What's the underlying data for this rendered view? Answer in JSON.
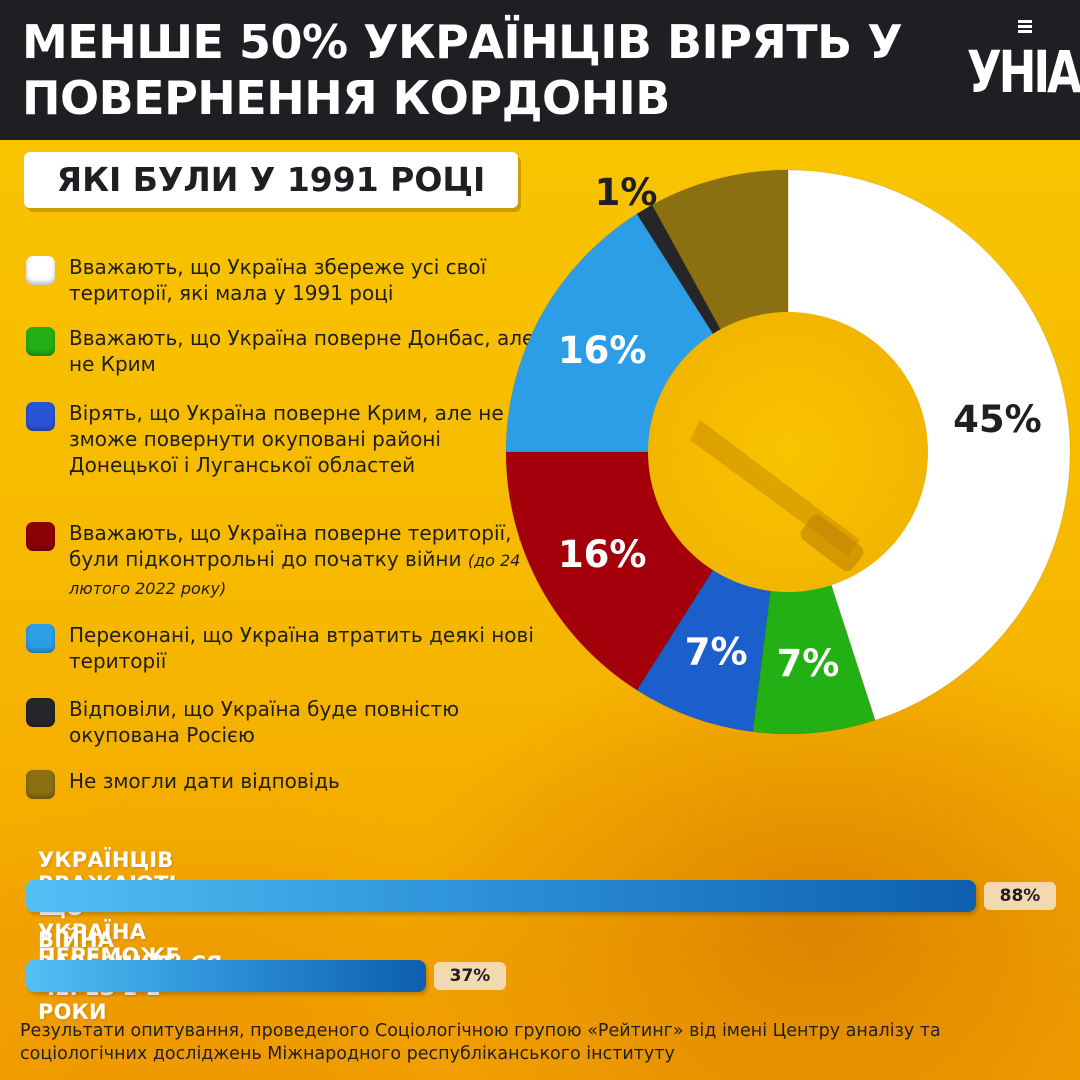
{
  "header": {
    "title": "МЕНШЕ 50% УКРАЇНЦІВ ВІРЯТЬ У ПОВЕРНЕННЯ КОРДОНІВ",
    "logo": "УНІАН"
  },
  "subtitle": "ЯКІ БУЛИ У 1991 РОЦІ",
  "legend": [
    {
      "text": "Вважають, що Україна збереже усі свої території, які мала у 1991 році",
      "note": "",
      "color": "#ffffff"
    },
    {
      "text": "Вважають, що Україна поверне Донбас, але не Крим",
      "note": "",
      "color": "#22b014"
    },
    {
      "text": "Вірять, що Україна поверне Крим, але не зможе повернути окуповані районі Донецької і Луганської областей",
      "note": "",
      "color": "#2a54d8"
    },
    {
      "text": "Вважають, що Україна поверне території, які були підконтрольні до початку війни",
      "note": "(до 24 лютого 2022 року)",
      "color": "#8c0008"
    },
    {
      "text": "Переконані, що Україна втратить деякі нові території",
      "note": "",
      "color": "#2c9ee8"
    },
    {
      "text": "Відповіли, що Україна буде повністю окупована Росією",
      "note": "",
      "color": "#26262a"
    },
    {
      "text": "Не змогли дати відповідь",
      "note": "",
      "color": "#8a7010"
    }
  ],
  "chart_data": [
    {
      "type": "pie",
      "categories": [
        "Вважають, що Україна збереже усі свої території, які мала у 1991 році",
        "Вважають, що Україна поверне Донбас, але не Крим",
        "Вірять, що Україна поверне Крим, але не зможе повернути окуповані районі Донецької і Луганської областей",
        "Вважають, що Україна поверне території, які були підконтрольні до початку війни (до 24 лютого 2022 року)",
        "Переконані, що Україна втратить деякі нові території",
        "Відповіли, що Україна буде повністю окупована Росією",
        "Не змогли дати відповідь"
      ],
      "values": [
        45,
        7,
        7,
        16,
        16,
        1,
        8
      ],
      "labels": [
        "45%",
        "7%",
        "7%",
        "16%",
        "16%",
        "1%",
        ""
      ],
      "colors": [
        "#ffffff",
        "#22b014",
        "#1a5fcc",
        "#a3000c",
        "#2c9ee8",
        "#26262a",
        "#8a7010"
      ]
    },
    {
      "type": "bar",
      "categories": [
        "УКРАЇНЦІВ ВВАЖАЮТЬ, ЩО УКРАЇНА ПЕРЕМОЖЕ У ВІЙНІ",
        "ВІЙНА ЗАВЕРШИТЬСЯ ЧЕРЕЗ 1-2 РОКИ"
      ],
      "values": [
        88,
        37
      ],
      "labels": [
        "88%",
        "37%"
      ]
    }
  ],
  "footer": "Результати опитування, проведеного Соціологічною групою «Рейтинг» від імені Центру аналізу та соціологічних досліджень Міжнародного республіканського інституту"
}
